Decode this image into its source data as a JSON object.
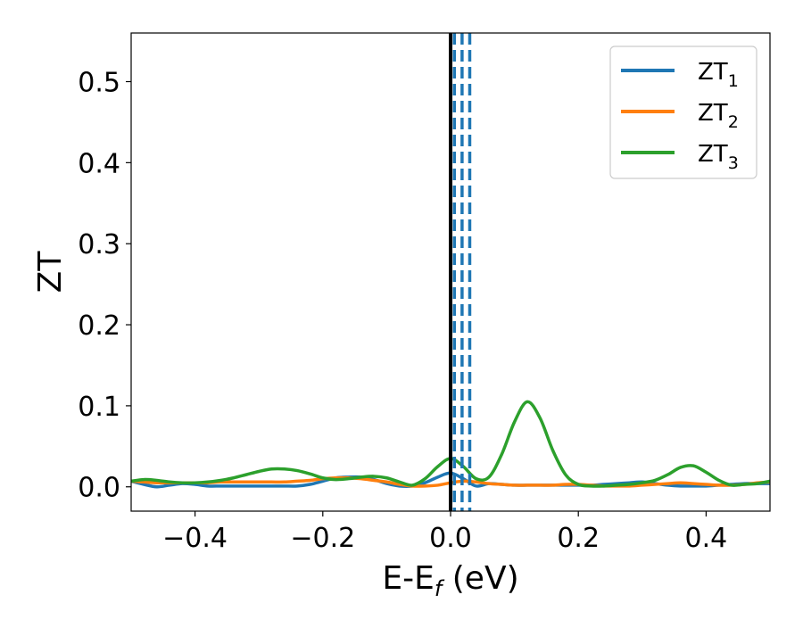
{
  "chart_data": {
    "type": "line",
    "xlabel": "E-E",
    "xlabel_sub": "f",
    "xlabel_unit": " (eV)",
    "ylabel": "ZT",
    "xlim": [
      -0.5,
      0.5
    ],
    "ylim": [
      -0.03,
      0.56
    ],
    "xticks": [
      {
        "value": -0.4,
        "label": "−0.4"
      },
      {
        "value": -0.2,
        "label": "−0.2"
      },
      {
        "value": 0.0,
        "label": "0.0"
      },
      {
        "value": 0.2,
        "label": "0.2"
      },
      {
        "value": 0.4,
        "label": "0.4"
      }
    ],
    "yticks": [
      {
        "value": 0.0,
        "label": "0.0"
      },
      {
        "value": 0.1,
        "label": "0.1"
      },
      {
        "value": 0.2,
        "label": "0.2"
      },
      {
        "value": 0.3,
        "label": "0.3"
      },
      {
        "value": 0.4,
        "label": "0.4"
      },
      {
        "value": 0.5,
        "label": "0.5"
      }
    ],
    "grid": false,
    "legend_position": "top-right",
    "vertical_lines": [
      {
        "x": 0.0,
        "style": "solid",
        "color": "#000000"
      },
      {
        "x": 0.006,
        "style": "dashed",
        "color": "#1f77b4"
      },
      {
        "x": 0.018,
        "style": "dashed",
        "color": "#1f77b4"
      },
      {
        "x": 0.03,
        "style": "dashed",
        "color": "#1f77b4"
      }
    ],
    "series": [
      {
        "name": "ZT",
        "subscript": "1",
        "color": "#1f77b4",
        "x": [
          -0.5,
          -0.48,
          -0.46,
          -0.44,
          -0.42,
          -0.4,
          -0.38,
          -0.36,
          -0.34,
          -0.32,
          -0.3,
          -0.28,
          -0.26,
          -0.24,
          -0.22,
          -0.2,
          -0.18,
          -0.16,
          -0.14,
          -0.12,
          -0.1,
          -0.08,
          -0.06,
          -0.04,
          -0.02,
          0.0,
          0.02,
          0.04,
          0.06,
          0.08,
          0.1,
          0.12,
          0.14,
          0.16,
          0.18,
          0.2,
          0.22,
          0.24,
          0.26,
          0.28,
          0.3,
          0.32,
          0.34,
          0.36,
          0.38,
          0.4,
          0.42,
          0.44,
          0.46,
          0.48,
          0.5
        ],
        "values": [
          0.007,
          0.003,
          0.0,
          0.002,
          0.004,
          0.003,
          0.001,
          0.001,
          0.001,
          0.001,
          0.001,
          0.001,
          0.001,
          0.001,
          0.003,
          0.007,
          0.011,
          0.012,
          0.012,
          0.009,
          0.004,
          0.001,
          0.001,
          0.005,
          0.012,
          0.017,
          0.01,
          0.001,
          0.004,
          0.003,
          0.002,
          0.002,
          0.002,
          0.002,
          0.002,
          0.002,
          0.002,
          0.003,
          0.004,
          0.005,
          0.006,
          0.004,
          0.002,
          0.001,
          0.001,
          0.001,
          0.002,
          0.003,
          0.004,
          0.004,
          0.004
        ]
      },
      {
        "name": "ZT",
        "subscript": "2",
        "color": "#ff7f0e",
        "x": [
          -0.5,
          -0.48,
          -0.46,
          -0.44,
          -0.42,
          -0.4,
          -0.38,
          -0.36,
          -0.34,
          -0.32,
          -0.3,
          -0.28,
          -0.26,
          -0.24,
          -0.22,
          -0.2,
          -0.18,
          -0.16,
          -0.14,
          -0.12,
          -0.1,
          -0.08,
          -0.06,
          -0.04,
          -0.02,
          0.0,
          0.02,
          0.04,
          0.06,
          0.08,
          0.1,
          0.12,
          0.14,
          0.16,
          0.18,
          0.2,
          0.22,
          0.24,
          0.26,
          0.28,
          0.3,
          0.32,
          0.34,
          0.36,
          0.38,
          0.4,
          0.42,
          0.44,
          0.46,
          0.48,
          0.5
        ],
        "values": [
          0.007,
          0.006,
          0.005,
          0.005,
          0.005,
          0.005,
          0.005,
          0.006,
          0.006,
          0.006,
          0.006,
          0.006,
          0.006,
          0.007,
          0.008,
          0.01,
          0.011,
          0.011,
          0.01,
          0.008,
          0.006,
          0.003,
          0.001,
          0.001,
          0.002,
          0.005,
          0.007,
          0.006,
          0.004,
          0.003,
          0.002,
          0.002,
          0.002,
          0.002,
          0.003,
          0.003,
          0.002,
          0.001,
          0.001,
          0.001,
          0.002,
          0.003,
          0.004,
          0.005,
          0.004,
          0.003,
          0.002,
          0.002,
          0.003,
          0.005,
          0.006
        ]
      },
      {
        "name": "ZT",
        "subscript": "3",
        "color": "#2ca02c",
        "x": [
          -0.5,
          -0.48,
          -0.46,
          -0.44,
          -0.42,
          -0.4,
          -0.38,
          -0.36,
          -0.34,
          -0.32,
          -0.3,
          -0.28,
          -0.26,
          -0.24,
          -0.22,
          -0.2,
          -0.18,
          -0.16,
          -0.14,
          -0.12,
          -0.1,
          -0.08,
          -0.06,
          -0.04,
          -0.02,
          0.0,
          0.02,
          0.04,
          0.06,
          0.08,
          0.1,
          0.12,
          0.14,
          0.16,
          0.18,
          0.2,
          0.22,
          0.24,
          0.26,
          0.28,
          0.3,
          0.32,
          0.34,
          0.36,
          0.38,
          0.4,
          0.42,
          0.44,
          0.46,
          0.48,
          0.5
        ],
        "values": [
          0.007,
          0.009,
          0.008,
          0.006,
          0.005,
          0.005,
          0.006,
          0.008,
          0.011,
          0.015,
          0.019,
          0.022,
          0.022,
          0.02,
          0.016,
          0.011,
          0.009,
          0.01,
          0.012,
          0.013,
          0.011,
          0.006,
          0.002,
          0.01,
          0.025,
          0.035,
          0.025,
          0.01,
          0.012,
          0.04,
          0.08,
          0.105,
          0.085,
          0.045,
          0.015,
          0.003,
          0.001,
          0.001,
          0.002,
          0.003,
          0.005,
          0.008,
          0.015,
          0.024,
          0.026,
          0.018,
          0.008,
          0.002,
          0.003,
          0.004,
          0.007
        ]
      }
    ]
  }
}
